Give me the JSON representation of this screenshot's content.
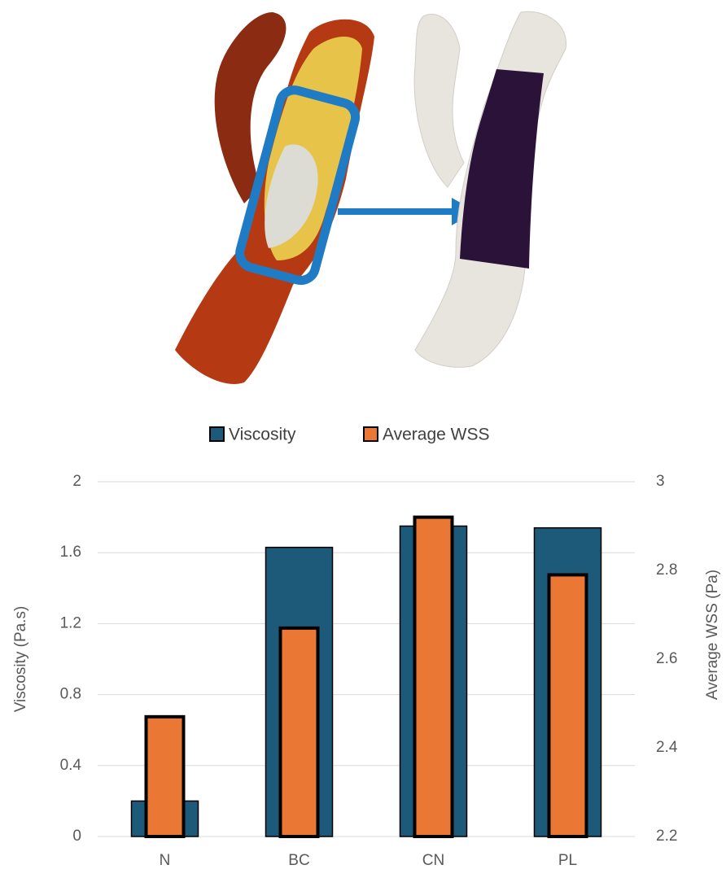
{
  "chart_data": {
    "type": "bar",
    "categories": [
      "N",
      "BC",
      "CN",
      "PL"
    ],
    "series": [
      {
        "name": "Viscosity",
        "color": "#1d5a7a",
        "values": [
          0.2,
          1.63,
          1.75,
          1.74
        ]
      },
      {
        "name": "Average WSS",
        "color": "#ea7734",
        "axis": "y2",
        "values": [
          2.47,
          2.67,
          2.92,
          2.79
        ]
      }
    ],
    "ylabel": "Viscosity (Pa.s)",
    "y2label": "Average WSS (Pa)",
    "ylim": [
      0,
      2
    ],
    "yticks": [
      0,
      0.4,
      0.8,
      1.2,
      1.6,
      2
    ],
    "y2lim": [
      2.2,
      3
    ],
    "y2ticks": [
      2.2,
      2.4,
      2.6,
      2.8,
      3
    ],
    "grid": true,
    "legend": "top"
  }
}
